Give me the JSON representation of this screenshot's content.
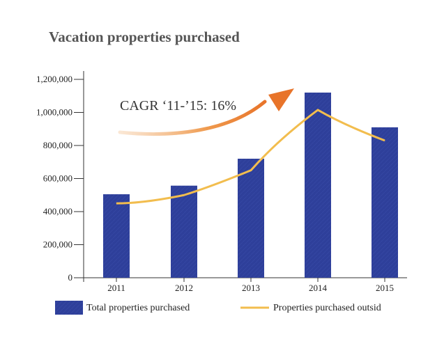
{
  "chart_data": {
    "type": "bar",
    "title": "Vacation properties purchased",
    "categories": [
      "2011",
      "2012",
      "2013",
      "2014",
      "2015"
    ],
    "series": [
      {
        "name": "Total properties purchased",
        "type": "bar",
        "color": "#2e3f9a",
        "values": [
          505000,
          557000,
          720000,
          1120000,
          910000
        ]
      },
      {
        "name": "Properties purchased outsid",
        "type": "line",
        "color": "#f2bd4e",
        "values": [
          450000,
          500000,
          650000,
          1015000,
          830000
        ]
      }
    ],
    "ylim": [
      0,
      1200000
    ],
    "yticks": [
      0,
      200000,
      400000,
      600000,
      800000,
      1000000,
      1200000
    ],
    "ytick_labels": [
      "0",
      "200,000",
      "400,000",
      "600,000",
      "800,000",
      "1,000,000",
      "1,200,000"
    ],
    "annotation": "CAGR ‘11-’15: 16%",
    "arrow_color": "#e8782a",
    "grid": false,
    "legend_position": "bottom"
  }
}
